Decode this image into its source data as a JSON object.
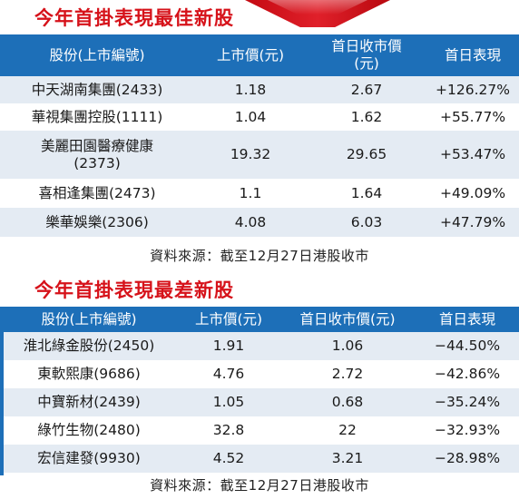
{
  "best": {
    "title": "今年首掛表現最佳新股",
    "headers": [
      "股份(上市編號)",
      "上市價(元)",
      "首日收市價\n(元)",
      "首日表現"
    ],
    "rows": [
      [
        "中天湖南集團(2433)",
        "1.18",
        "2.67",
        "+126.27%"
      ],
      [
        "華視集團控股(1111)",
        "1.04",
        "1.62",
        "+55.77%"
      ],
      [
        "美麗田園醫療健康\n(2373)",
        "19.32",
        "29.65",
        "+53.47%"
      ],
      [
        "喜相逢集團(2473)",
        "1.1",
        "1.64",
        "+49.09%"
      ],
      [
        "樂華娛樂(2306)",
        "4.08",
        "6.03",
        "+47.79%"
      ]
    ],
    "source": "資料來源：截至12月27日港股收市"
  },
  "worst": {
    "title": "今年首掛表現最差新股",
    "headers": [
      "股份(上市編號)",
      "上市價(元)",
      "首日收市價(元)",
      "首日表現"
    ],
    "rows": [
      [
        "淮北綠金股份(2450)",
        "1.91",
        "1.06",
        "−44.50%"
      ],
      [
        "東軟熙康(9686)",
        "4.76",
        "2.72",
        "−42.86%"
      ],
      [
        "中寶新材(2439)",
        "1.05",
        "0.68",
        "−35.24%"
      ],
      [
        "綠竹生物(2480)",
        "32.8",
        "22",
        "−32.93%"
      ],
      [
        "宏信建發(9930)",
        "4.52",
        "3.21",
        "−28.98%"
      ]
    ],
    "source": "資料來源：截至12月27日港股收市"
  },
  "colors": {
    "title_red": "#d6121a",
    "header_blue": "#1d6fb8",
    "stripe": "#e4ebf3"
  }
}
